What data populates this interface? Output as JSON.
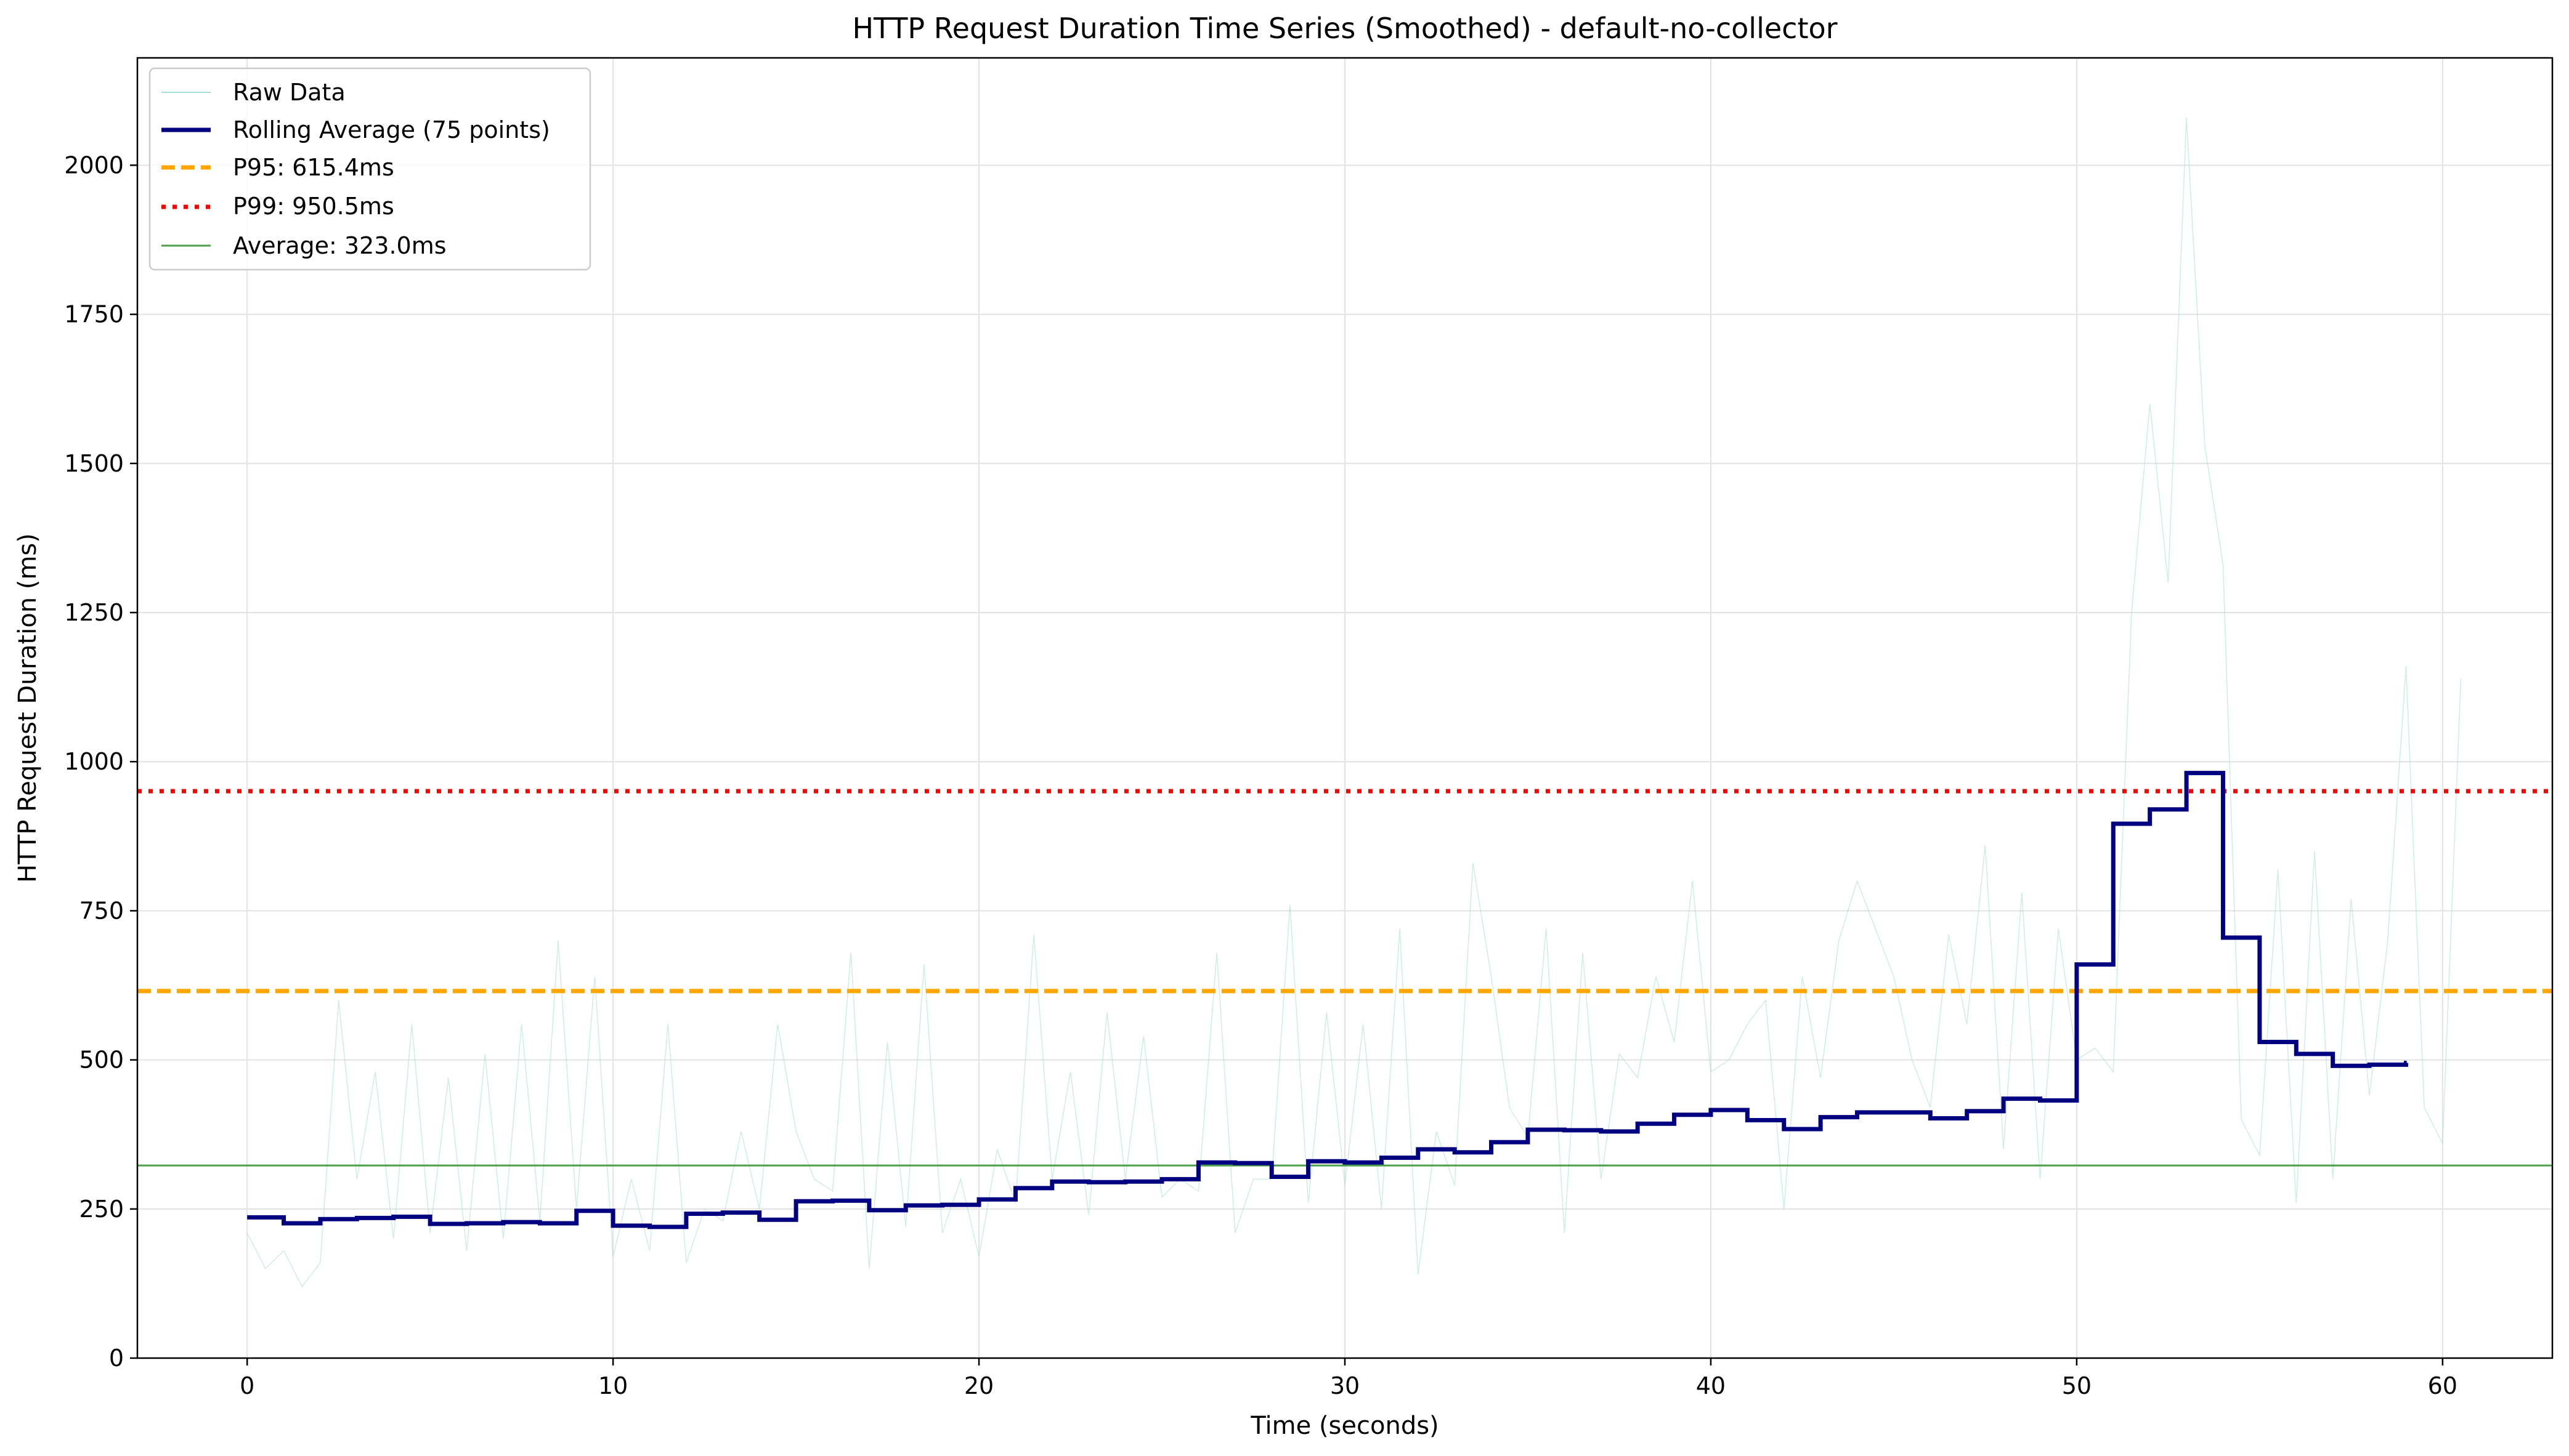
{
  "chart_data": {
    "type": "line",
    "title": "HTTP Request Duration Time Series (Smoothed) - default-no-collector",
    "xlabel": "Time (seconds)",
    "ylabel": "HTTP Request Duration (ms)",
    "xlim": [
      -3,
      63
    ],
    "ylim": [
      0,
      2180
    ],
    "xticks": [
      0,
      10,
      20,
      30,
      40,
      50,
      60
    ],
    "yticks": [
      0,
      250,
      500,
      750,
      1000,
      1250,
      1500,
      1750,
      2000
    ],
    "grid": true,
    "legend_position": "top-left",
    "colors": {
      "raw": "#a8dcd6",
      "rolling": "#000080",
      "p95": "#ffa500",
      "p99": "#ff0000",
      "average": "#4aa04a",
      "grid": "#e2e2e2"
    },
    "series": [
      {
        "name": "Raw Data",
        "style": "thin-line",
        "points": [
          [
            0,
            210
          ],
          [
            0.5,
            150
          ],
          [
            1,
            180
          ],
          [
            1.5,
            120
          ],
          [
            2,
            160
          ],
          [
            2.5,
            600
          ],
          [
            3,
            300
          ],
          [
            3.5,
            480
          ],
          [
            4,
            200
          ],
          [
            4.5,
            560
          ],
          [
            5,
            210
          ],
          [
            5.5,
            470
          ],
          [
            6,
            180
          ],
          [
            6.5,
            510
          ],
          [
            7,
            200
          ],
          [
            7.5,
            560
          ],
          [
            8,
            230
          ],
          [
            8.5,
            700
          ],
          [
            9,
            250
          ],
          [
            9.5,
            640
          ],
          [
            10,
            170
          ],
          [
            10.5,
            300
          ],
          [
            11,
            180
          ],
          [
            11.5,
            560
          ],
          [
            12,
            160
          ],
          [
            12.5,
            250
          ],
          [
            13,
            230
          ],
          [
            13.5,
            380
          ],
          [
            14,
            250
          ],
          [
            14.5,
            560
          ],
          [
            15,
            380
          ],
          [
            15.5,
            300
          ],
          [
            16,
            280
          ],
          [
            16.5,
            680
          ],
          [
            17,
            150
          ],
          [
            17.5,
            530
          ],
          [
            18,
            220
          ],
          [
            18.5,
            660
          ],
          [
            19,
            210
          ],
          [
            19.5,
            300
          ],
          [
            20,
            170
          ],
          [
            20.5,
            350
          ],
          [
            21,
            260
          ],
          [
            21.5,
            710
          ],
          [
            22,
            300
          ],
          [
            22.5,
            480
          ],
          [
            23,
            240
          ],
          [
            23.5,
            580
          ],
          [
            24,
            300
          ],
          [
            24.5,
            540
          ],
          [
            25,
            270
          ],
          [
            25.5,
            300
          ],
          [
            26,
            280
          ],
          [
            26.5,
            680
          ],
          [
            27,
            210
          ],
          [
            27.5,
            300
          ],
          [
            28,
            300
          ],
          [
            28.5,
            760
          ],
          [
            29,
            260
          ],
          [
            29.5,
            580
          ],
          [
            30,
            290
          ],
          [
            30.5,
            560
          ],
          [
            31,
            250
          ],
          [
            31.5,
            720
          ],
          [
            32,
            140
          ],
          [
            32.5,
            380
          ],
          [
            33,
            290
          ],
          [
            33.5,
            830
          ],
          [
            34,
            640
          ],
          [
            34.5,
            420
          ],
          [
            35,
            370
          ],
          [
            35.5,
            720
          ],
          [
            36,
            210
          ],
          [
            36.5,
            680
          ],
          [
            37,
            300
          ],
          [
            37.5,
            510
          ],
          [
            38,
            470
          ],
          [
            38.5,
            640
          ],
          [
            39,
            530
          ],
          [
            39.5,
            800
          ],
          [
            40,
            480
          ],
          [
            40.5,
            500
          ],
          [
            41,
            560
          ],
          [
            41.5,
            600
          ],
          [
            42,
            250
          ],
          [
            42.5,
            640
          ],
          [
            43,
            470
          ],
          [
            43.5,
            700
          ],
          [
            44,
            800
          ],
          [
            44.5,
            720
          ],
          [
            45,
            640
          ],
          [
            45.5,
            500
          ],
          [
            46,
            420
          ],
          [
            46.5,
            710
          ],
          [
            47,
            560
          ],
          [
            47.5,
            860
          ],
          [
            48,
            350
          ],
          [
            48.5,
            780
          ],
          [
            49,
            300
          ],
          [
            49.5,
            720
          ],
          [
            50,
            500
          ],
          [
            50.5,
            520
          ],
          [
            51,
            480
          ],
          [
            51.5,
            1250
          ],
          [
            52,
            1600
          ],
          [
            52.5,
            1300
          ],
          [
            53,
            2080
          ],
          [
            53.5,
            1530
          ],
          [
            54,
            1330
          ],
          [
            54.5,
            400
          ],
          [
            55,
            340
          ],
          [
            55.5,
            820
          ],
          [
            56,
            260
          ],
          [
            56.5,
            850
          ],
          [
            57,
            300
          ],
          [
            57.5,
            770
          ],
          [
            58,
            440
          ],
          [
            58.5,
            700
          ],
          [
            59,
            1160
          ],
          [
            59.5,
            420
          ],
          [
            60,
            360
          ],
          [
            60.5,
            1140
          ]
        ]
      },
      {
        "name": "Rolling Average (75 points)",
        "style": "step-line",
        "steps": [
          [
            0,
            236
          ],
          [
            1,
            226
          ],
          [
            2,
            233
          ],
          [
            3,
            235
          ],
          [
            4,
            237
          ],
          [
            5,
            225
          ],
          [
            6,
            226
          ],
          [
            7,
            228
          ],
          [
            8,
            226
          ],
          [
            9,
            247
          ],
          [
            10,
            222
          ],
          [
            11,
            220
          ],
          [
            12,
            242
          ],
          [
            13,
            244
          ],
          [
            14,
            232
          ],
          [
            15,
            263
          ],
          [
            16,
            264
          ],
          [
            17,
            248
          ],
          [
            18,
            256
          ],
          [
            19,
            257
          ],
          [
            20,
            266
          ],
          [
            21,
            285
          ],
          [
            22,
            296
          ],
          [
            23,
            295
          ],
          [
            24,
            296
          ],
          [
            25,
            300
          ],
          [
            26,
            328
          ],
          [
            27,
            327
          ],
          [
            28,
            304
          ],
          [
            29,
            330
          ],
          [
            30,
            328
          ],
          [
            31,
            336
          ],
          [
            32,
            350
          ],
          [
            33,
            345
          ],
          [
            34,
            362
          ],
          [
            35,
            383
          ],
          [
            36,
            382
          ],
          [
            37,
            380
          ],
          [
            38,
            393
          ],
          [
            39,
            408
          ],
          [
            40,
            416
          ],
          [
            41,
            399
          ],
          [
            42,
            384
          ],
          [
            43,
            404
          ],
          [
            44,
            412
          ],
          [
            45,
            412
          ],
          [
            46,
            402
          ],
          [
            47,
            414
          ],
          [
            48,
            435
          ],
          [
            49,
            432
          ],
          [
            50,
            660
          ],
          [
            51,
            896
          ],
          [
            52,
            920
          ],
          [
            53,
            981
          ],
          [
            54,
            705
          ],
          [
            55,
            530
          ],
          [
            56,
            510
          ],
          [
            57,
            490
          ],
          [
            58,
            492
          ],
          [
            59,
            495
          ]
        ]
      }
    ],
    "reference_lines": [
      {
        "name": "P95: 615.4ms",
        "value": 615.4,
        "style": "dashed"
      },
      {
        "name": "P99: 950.5ms",
        "value": 950.5,
        "style": "dotted"
      },
      {
        "name": "Average: 323.0ms",
        "value": 323.0,
        "style": "solid-thin"
      }
    ]
  }
}
